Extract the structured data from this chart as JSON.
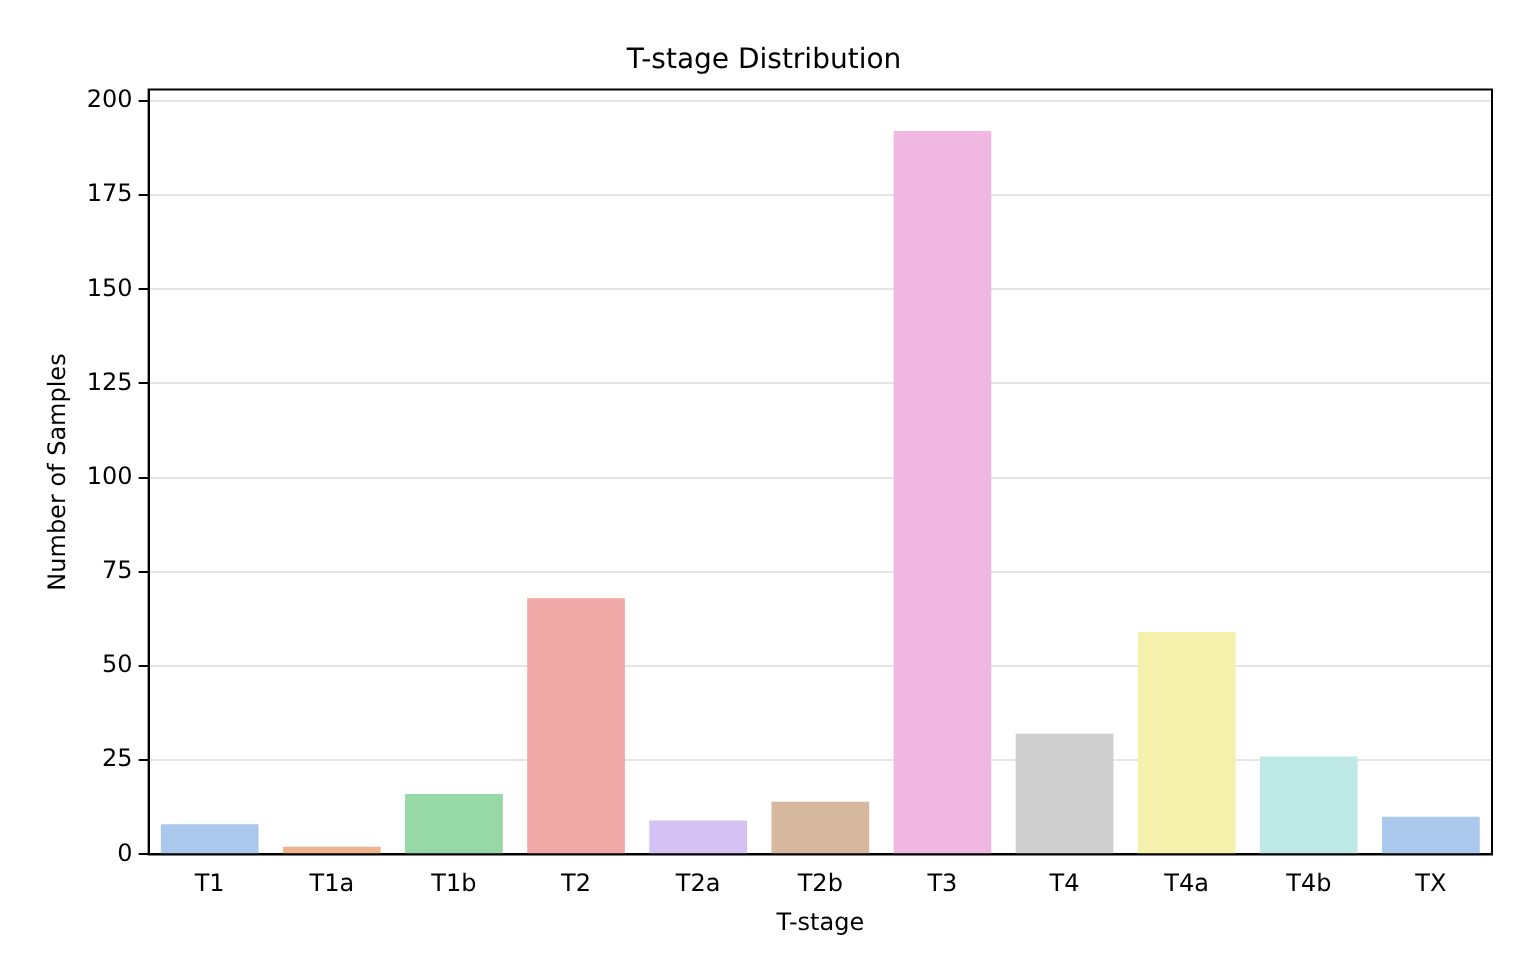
{
  "chart_data": {
    "type": "bar",
    "title": "T-stage Distribution",
    "xlabel": "T-stage",
    "ylabel": "Number of Samples",
    "categories": [
      "T1",
      "T1a",
      "T1b",
      "T2",
      "T2a",
      "T2b",
      "T3",
      "T4",
      "T4a",
      "T4b",
      "TX"
    ],
    "values": [
      8,
      2,
      16,
      68,
      9,
      14,
      192,
      32,
      59,
      26,
      10
    ],
    "colors": [
      "#a9c8ec",
      "#f0b48e",
      "#97d9a6",
      "#f0a9a6",
      "#d3c2f3",
      "#d5b89e",
      "#f0b8e0",
      "#cfcfcf",
      "#f3f1ac",
      "#bfe9e6",
      "#a9c8ec"
    ],
    "ylim": [
      0,
      203
    ],
    "yticks": [
      0,
      25,
      50,
      75,
      100,
      125,
      150,
      175,
      200
    ],
    "grid": "y",
    "legend": false
  }
}
